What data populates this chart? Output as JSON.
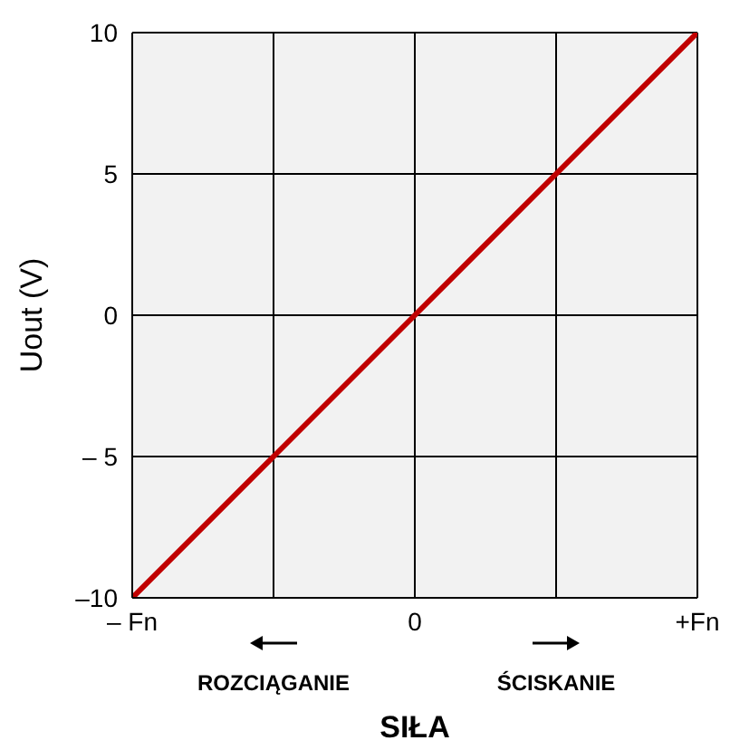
{
  "chart_data": {
    "type": "line",
    "xlabel": "SIŁA",
    "ylabel": "Uout (V)",
    "categories": [
      "– Fn",
      null,
      "0",
      null,
      "+Fn"
    ],
    "series": [
      {
        "color": "#c00000",
        "values": [
          -10,
          -5,
          0,
          5,
          10
        ]
      }
    ],
    "ylim": [
      -10,
      10
    ],
    "yticks": [
      {
        "value": -10,
        "label": "–10"
      },
      {
        "value": -5,
        "label": "– 5"
      },
      0,
      5,
      10
    ],
    "grid": true,
    "marker": "none",
    "annotations": [
      "ROZCIĄGANIE",
      "ŚCISKANIE"
    ]
  }
}
